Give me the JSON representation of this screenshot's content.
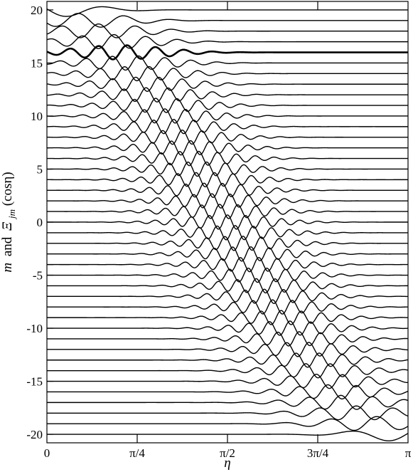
{
  "chart_data": {
    "type": "line",
    "title": "",
    "xlabel": "η",
    "ylabel_parts": {
      "m": "m",
      "and": "and",
      "Xi": "Ξ",
      "sub": "jm",
      "arg": "(cosη)"
    },
    "xlim": [
      0,
      3.14159
    ],
    "ylim": [
      -20.8,
      20.8
    ],
    "x_ticks": [
      {
        "value": 0,
        "label": "0"
      },
      {
        "value": 0.7854,
        "label": "π/4"
      },
      {
        "value": 1.5708,
        "label": "π/2"
      },
      {
        "value": 2.3562,
        "label": "3π/4"
      },
      {
        "value": 3.14159,
        "label": "π"
      }
    ],
    "y_ticks": [
      {
        "value": 20,
        "label": "20"
      },
      {
        "value": 15,
        "label": "15"
      },
      {
        "value": 10,
        "label": "10"
      },
      {
        "value": 5,
        "label": "5"
      },
      {
        "value": 0,
        "label": "0"
      },
      {
        "value": -5,
        "label": "-5"
      },
      {
        "value": -10,
        "label": "-10"
      },
      {
        "value": -15,
        "label": "-15"
      },
      {
        "value": -20,
        "label": "-20"
      }
    ],
    "series_m_range": [
      -20,
      20
    ],
    "highlighted_m": 16,
    "j": 20,
    "curve_amplitude": 1.35,
    "line_color": "#000000"
  }
}
